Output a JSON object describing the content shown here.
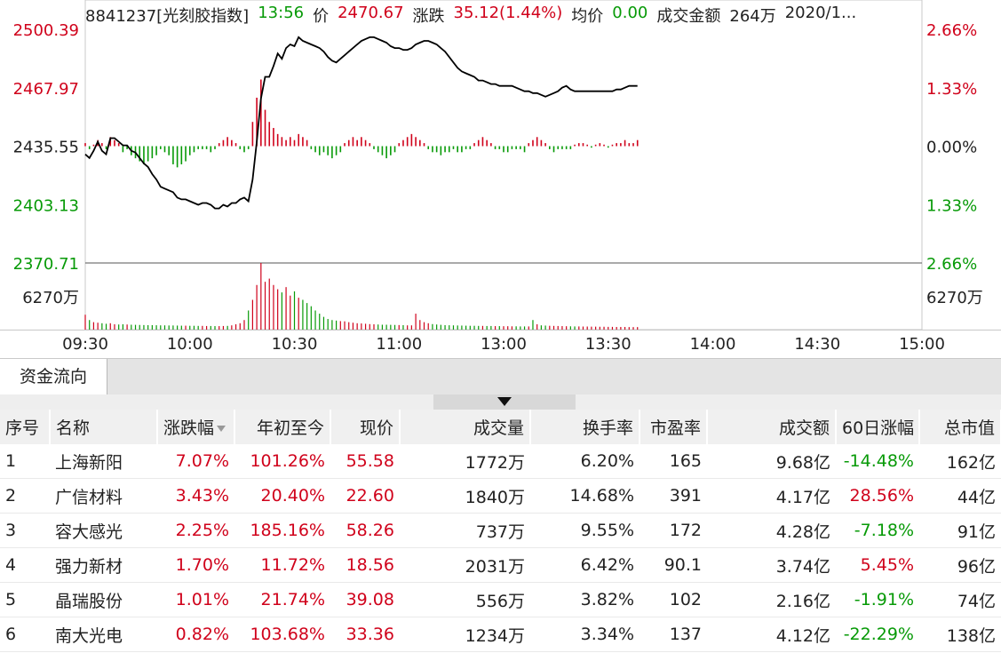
{
  "header": {
    "code_name": "8841237[光刻胶指数]",
    "time": "13:56",
    "price_label": "价",
    "price": "2470.67",
    "change_label": "涨跌",
    "change": "35.12(1.44%)",
    "avg_label": "均价",
    "avg": "0.00",
    "amount_label": "成交金额",
    "amount": "264万",
    "date": "2020/1..."
  },
  "y_axis_left": [
    "2500.39",
    "2467.97",
    "2435.55",
    "2403.13",
    "2370.71"
  ],
  "y_axis_right": [
    "2.66%",
    "1.33%",
    "0.00%",
    "1.33%",
    "2.66%"
  ],
  "volume_label_left": "6270万",
  "volume_label_right": "6270万",
  "x_axis": [
    "09:30",
    "10:00",
    "10:30",
    "11:00",
    "13:00",
    "13:30",
    "14:00",
    "14:30",
    "15:00"
  ],
  "colors": {
    "up": "#d0021b",
    "down": "#079a07",
    "line": "#000000",
    "grid": "#9a9a9a"
  },
  "chart_data": {
    "type": "line",
    "price_range": [
      2370.71,
      2500.39
    ],
    "base_price": 2435.55,
    "volume_max": 6270,
    "volume_unit": "万",
    "price": [
      2431,
      2429,
      2433,
      2438,
      2433,
      2431,
      2440,
      2440,
      2438,
      2436,
      2436,
      2433,
      2432,
      2429,
      2426,
      2424,
      2420,
      2417,
      2413,
      2412,
      2411,
      2410,
      2407,
      2406,
      2406,
      2405,
      2404,
      2403,
      2404,
      2404,
      2403,
      2401,
      2401,
      2403,
      2402,
      2404,
      2404,
      2406,
      2407,
      2405,
      2417,
      2438,
      2462,
      2474,
      2474,
      2480,
      2487,
      2484,
      2490,
      2492,
      2491,
      2496,
      2494,
      2493,
      2492,
      2491,
      2490,
      2488,
      2485,
      2483,
      2482,
      2484,
      2486,
      2488,
      2490,
      2492,
      2494,
      2495,
      2496,
      2496,
      2495,
      2494,
      2493,
      2491,
      2490,
      2490,
      2489,
      2489,
      2490,
      2492,
      2493,
      2494,
      2494,
      2493,
      2492,
      2490,
      2488,
      2485,
      2482,
      2479,
      2477,
      2476,
      2475,
      2474,
      2472,
      2472,
      2471,
      2470,
      2470,
      2469,
      2469,
      2469,
      2469,
      2468,
      2467,
      2466,
      2466,
      2465,
      2465,
      2464,
      2463,
      2464,
      2465,
      2466,
      2468,
      2469,
      2467,
      2466,
      2466,
      2466,
      2466,
      2466,
      2466,
      2466,
      2466,
      2466,
      2466,
      2467,
      2467,
      2468,
      2469,
      2469,
      2469
    ],
    "net_flow": [
      1,
      -1,
      0.5,
      2,
      1,
      -1,
      3,
      2,
      1,
      -2,
      -1,
      -3,
      -4,
      -5,
      -6,
      -5,
      -4,
      -3,
      -1,
      -2,
      -3,
      -6,
      -7,
      -6,
      -5,
      -3,
      -2,
      -1,
      -1,
      -1,
      -2,
      -1,
      1,
      2,
      3,
      2,
      1,
      -1,
      -2,
      -1,
      8,
      16,
      22,
      12,
      8,
      6,
      4,
      3,
      2,
      3,
      2,
      4,
      3,
      2,
      -1,
      -2,
      -3,
      -2,
      -3,
      -4,
      -3,
      -2,
      1,
      2,
      3,
      2,
      3,
      2,
      1,
      -1,
      -2,
      -3,
      -4,
      -3,
      -2,
      1,
      2,
      3,
      4,
      3,
      2,
      1,
      -1,
      -2,
      -2,
      -3,
      -2,
      -2,
      -1,
      -2,
      -2,
      -1,
      -1,
      1,
      2,
      3,
      2,
      1,
      -1,
      -1,
      -2,
      -2,
      -1,
      -1,
      -1,
      -2,
      1,
      2,
      3,
      2,
      1,
      -1,
      -2,
      -1,
      -1,
      -1,
      -1,
      0.5,
      1,
      1,
      0.5,
      -0.5,
      0.5,
      1,
      0.5,
      -0.5,
      0.5,
      1,
      1,
      2,
      1,
      1,
      2
    ],
    "volume": [
      1400,
      900,
      700,
      650,
      600,
      550,
      600,
      500,
      480,
      500,
      480,
      460,
      450,
      440,
      430,
      420,
      420,
      410,
      400,
      400,
      390,
      390,
      380,
      370,
      370,
      360,
      360,
      350,
      350,
      340,
      340,
      330,
      330,
      340,
      350,
      400,
      500,
      600,
      900,
      1800,
      2800,
      4200,
      6270,
      4500,
      4800,
      4200,
      3800,
      3500,
      4000,
      3200,
      3600,
      3000,
      2800,
      2500,
      2200,
      1800,
      1500,
      1200,
      1000,
      900,
      850,
      800,
      780,
      700,
      650,
      600,
      580,
      550,
      520,
      500,
      480,
      460,
      460,
      450,
      440,
      430,
      420,
      400,
      400,
      1500,
      900,
      700,
      600,
      520,
      480,
      450,
      420,
      410,
      400,
      390,
      380,
      370,
      360,
      360,
      350,
      350,
      340,
      340,
      330,
      330,
      320,
      320,
      310,
      310,
      300,
      300,
      300,
      900,
      500,
      400,
      380,
      360,
      350,
      340,
      330,
      320,
      310,
      300,
      300,
      290,
      290,
      280,
      280,
      270,
      270,
      260,
      260,
      250,
      250,
      250,
      240,
      240,
      240
    ]
  },
  "tabs": [
    {
      "label": "资金流向"
    }
  ],
  "table": {
    "headers": [
      "序号",
      "名称",
      "涨跌幅",
      "年初至今",
      "现价",
      "成交量",
      "换手率",
      "市盈率",
      "成交额",
      "60日涨幅",
      "总市值"
    ],
    "rows": [
      {
        "idx": "1",
        "name": "上海新阳",
        "chg": "7.07%",
        "ytd": "101.26%",
        "price": "55.58",
        "vol": "1772万",
        "turnover": "6.20%",
        "pe": "165",
        "amount": "9.68亿",
        "d60": "-14.48%",
        "mcap": "162亿",
        "d60_up": false
      },
      {
        "idx": "2",
        "name": "广信材料",
        "chg": "3.43%",
        "ytd": "20.40%",
        "price": "22.60",
        "vol": "1840万",
        "turnover": "14.68%",
        "pe": "391",
        "amount": "4.17亿",
        "d60": "28.56%",
        "mcap": "44亿",
        "d60_up": true
      },
      {
        "idx": "3",
        "name": "容大感光",
        "chg": "2.25%",
        "ytd": "185.16%",
        "price": "58.26",
        "vol": "737万",
        "turnover": "9.55%",
        "pe": "172",
        "amount": "4.28亿",
        "d60": "-7.18%",
        "mcap": "91亿",
        "d60_up": false
      },
      {
        "idx": "4",
        "name": "强力新材",
        "chg": "1.70%",
        "ytd": "11.72%",
        "price": "18.56",
        "vol": "2031万",
        "turnover": "6.42%",
        "pe": "90.1",
        "amount": "3.74亿",
        "d60": "5.45%",
        "mcap": "96亿",
        "d60_up": true
      },
      {
        "idx": "5",
        "name": "晶瑞股份",
        "chg": "1.01%",
        "ytd": "21.74%",
        "price": "39.08",
        "vol": "556万",
        "turnover": "3.82%",
        "pe": "102",
        "amount": "2.16亿",
        "d60": "-1.91%",
        "mcap": "74亿",
        "d60_up": false
      },
      {
        "idx": "6",
        "name": "南大光电",
        "chg": "0.82%",
        "ytd": "103.68%",
        "price": "33.36",
        "vol": "1234万",
        "turnover": "3.34%",
        "pe": "137",
        "amount": "4.12亿",
        "d60": "-22.29%",
        "mcap": "138亿",
        "d60_up": false
      }
    ]
  }
}
